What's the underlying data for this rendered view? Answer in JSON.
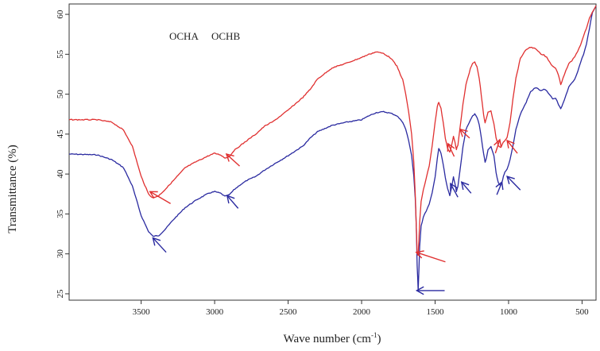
{
  "chart_data": {
    "type": "line",
    "title": "",
    "xlabel": "Wave number (cm",
    "xlabel_sup": "-1",
    "xlabel_close": ")",
    "ylabel": "Transmittance (%)",
    "x_reversed": true,
    "xlim": [
      3990,
      405
    ],
    "ylim": [
      24.2,
      61.3
    ],
    "xticks": [
      3500,
      3000,
      2500,
      2000,
      1500,
      1000,
      500
    ],
    "yticks": [
      25,
      30,
      35,
      40,
      45,
      50,
      55,
      60
    ],
    "grid": false,
    "legend_position": "top-left",
    "series": [
      {
        "name": "OCHA",
        "color": "#2a2aa0",
        "x": [
          3990,
          3800,
          3700,
          3620,
          3560,
          3500,
          3450,
          3420,
          3380,
          3340,
          3280,
          3200,
          3120,
          3040,
          3000,
          2960,
          2930,
          2900,
          2870,
          2830,
          2780,
          2720,
          2660,
          2600,
          2500,
          2400,
          2350,
          2300,
          2200,
          2100,
          2000,
          1950,
          1900,
          1850,
          1800,
          1760,
          1720,
          1700,
          1680,
          1660,
          1645,
          1635,
          1628,
          1622,
          1615,
          1605,
          1595,
          1580,
          1560,
          1540,
          1520,
          1500,
          1485,
          1475,
          1460,
          1445,
          1430,
          1415,
          1400,
          1385,
          1375,
          1365,
          1355,
          1345,
          1330,
          1310,
          1290,
          1275,
          1260,
          1245,
          1230,
          1215,
          1200,
          1185,
          1170,
          1160,
          1150,
          1140,
          1120,
          1100,
          1085,
          1070,
          1055,
          1045,
          1035,
          1025,
          1010,
          990,
          970,
          950,
          920,
          880,
          850,
          820,
          800,
          780,
          760,
          740,
          720,
          700,
          680,
          660,
          645,
          630,
          610,
          590,
          570,
          550,
          530,
          510,
          490,
          470,
          450,
          430,
          405
        ],
        "values": [
          42.5,
          42.4,
          41.8,
          40.8,
          38.5,
          34.8,
          32.8,
          32.2,
          32.3,
          33.0,
          34.3,
          35.8,
          36.8,
          37.6,
          37.8,
          37.6,
          37.2,
          37.4,
          38.0,
          38.6,
          39.2,
          39.7,
          40.5,
          41.2,
          42.3,
          43.5,
          44.5,
          45.3,
          46.1,
          46.5,
          46.8,
          47.3,
          47.7,
          47.8,
          47.6,
          47.3,
          46.5,
          45.6,
          44.2,
          42.3,
          39.8,
          37.0,
          33.5,
          28.5,
          25.4,
          31.0,
          33.5,
          34.6,
          35.4,
          36.2,
          37.6,
          39.6,
          42.0,
          43.2,
          42.6,
          41.2,
          39.5,
          38.2,
          37.3,
          38.6,
          39.6,
          38.8,
          37.8,
          38.4,
          40.5,
          43.5,
          45.5,
          46.2,
          46.8,
          47.3,
          47.5,
          47.1,
          46.2,
          44.5,
          42.6,
          41.5,
          42.0,
          43.0,
          43.4,
          42.3,
          40.2,
          38.9,
          38.5,
          38.9,
          39.7,
          40.2,
          40.6,
          41.8,
          43.6,
          45.6,
          47.5,
          49.0,
          50.3,
          50.8,
          50.7,
          50.4,
          50.6,
          50.4,
          49.9,
          49.4,
          49.5,
          48.7,
          48.2,
          48.8,
          49.9,
          50.9,
          51.4,
          51.9,
          52.8,
          54.0,
          55.0,
          56.3,
          58.2,
          60.2,
          61.0
        ]
      },
      {
        "name": "OCHB",
        "color": "#e03030",
        "x": [
          3990,
          3800,
          3700,
          3620,
          3560,
          3500,
          3450,
          3420,
          3380,
          3340,
          3280,
          3200,
          3120,
          3040,
          3000,
          2960,
          2930,
          2900,
          2870,
          2830,
          2780,
          2720,
          2660,
          2600,
          2500,
          2400,
          2350,
          2300,
          2200,
          2100,
          2000,
          1950,
          1900,
          1850,
          1800,
          1760,
          1720,
          1700,
          1680,
          1660,
          1645,
          1635,
          1628,
          1622,
          1615,
          1605,
          1595,
          1580,
          1560,
          1540,
          1520,
          1500,
          1485,
          1475,
          1460,
          1445,
          1430,
          1415,
          1400,
          1385,
          1375,
          1365,
          1355,
          1345,
          1330,
          1310,
          1290,
          1275,
          1260,
          1245,
          1230,
          1215,
          1200,
          1185,
          1170,
          1160,
          1150,
          1140,
          1120,
          1100,
          1085,
          1070,
          1055,
          1045,
          1035,
          1025,
          1010,
          990,
          970,
          950,
          920,
          880,
          850,
          820,
          800,
          780,
          760,
          740,
          720,
          700,
          680,
          660,
          645,
          630,
          610,
          590,
          570,
          550,
          530,
          510,
          490,
          470,
          450,
          430,
          405
        ],
        "values": [
          46.8,
          46.8,
          46.5,
          45.5,
          43.5,
          39.7,
          37.5,
          37.0,
          37.3,
          38.0,
          39.2,
          40.8,
          41.6,
          42.3,
          42.6,
          42.4,
          42.0,
          42.2,
          42.9,
          43.5,
          44.2,
          45.0,
          46.0,
          46.6,
          48.0,
          49.6,
          50.6,
          51.9,
          53.3,
          53.9,
          54.6,
          55.0,
          55.3,
          55.1,
          54.5,
          53.5,
          51.8,
          50.0,
          47.8,
          45.0,
          41.5,
          37.5,
          33.5,
          30.0,
          29.8,
          34.0,
          36.5,
          38.0,
          39.5,
          41.0,
          43.5,
          46.5,
          48.5,
          49.0,
          48.2,
          46.5,
          44.5,
          43.2,
          42.7,
          43.8,
          44.7,
          44.0,
          43.1,
          43.6,
          45.8,
          48.8,
          51.2,
          52.2,
          53.2,
          53.9,
          54.0,
          53.4,
          52.0,
          49.8,
          47.5,
          46.4,
          47.0,
          47.8,
          47.9,
          46.3,
          44.5,
          43.6,
          43.3,
          43.6,
          44.0,
          44.2,
          44.6,
          46.5,
          49.5,
          52.0,
          54.5,
          55.6,
          55.9,
          55.7,
          55.4,
          55.0,
          54.9,
          54.6,
          54.0,
          53.5,
          53.3,
          52.4,
          51.2,
          52.0,
          53.0,
          53.8,
          54.2,
          54.7,
          55.3,
          56.2,
          57.3,
          58.3,
          59.5,
          60.3,
          61.1
        ]
      }
    ],
    "annotations": [
      {
        "color": "#e03030",
        "from": [
          3300,
          36.3
        ],
        "to": [
          3440,
          37.8
        ]
      },
      {
        "color": "#e03030",
        "from": [
          2830,
          41.0
        ],
        "to": [
          2920,
          42.5
        ]
      },
      {
        "color": "#e03030",
        "from": [
          1430,
          29.0
        ],
        "to": [
          1628,
          30.2
        ]
      },
      {
        "color": "#e03030",
        "from": [
          1370,
          42.2
        ],
        "to": [
          1412,
          43.8
        ]
      },
      {
        "color": "#e03030",
        "from": [
          1265,
          44.5
        ],
        "to": [
          1330,
          45.6
        ]
      },
      {
        "color": "#e03030",
        "from": [
          1090,
          42.6
        ],
        "to": [
          1060,
          44.3
        ]
      },
      {
        "color": "#e03030",
        "from": [
          940,
          42.6
        ],
        "to": [
          1010,
          44.2
        ]
      },
      {
        "color": "#2a2aa0",
        "from": [
          3330,
          30.2
        ],
        "to": [
          3420,
          32.0
        ]
      },
      {
        "color": "#2a2aa0",
        "from": [
          2840,
          35.7
        ],
        "to": [
          2915,
          37.3
        ]
      },
      {
        "color": "#2a2aa0",
        "from": [
          1435,
          25.4
        ],
        "to": [
          1625,
          25.4
        ]
      },
      {
        "color": "#2a2aa0",
        "from": [
          1345,
          37.1
        ],
        "to": [
          1395,
          38.8
        ]
      },
      {
        "color": "#2a2aa0",
        "from": [
          1255,
          37.6
        ],
        "to": [
          1320,
          39.0
        ]
      },
      {
        "color": "#2a2aa0",
        "from": [
          1080,
          37.4
        ],
        "to": [
          1045,
          39.0
        ]
      },
      {
        "color": "#2a2aa0",
        "from": [
          920,
          38.0
        ],
        "to": [
          1010,
          39.7
        ]
      }
    ]
  }
}
